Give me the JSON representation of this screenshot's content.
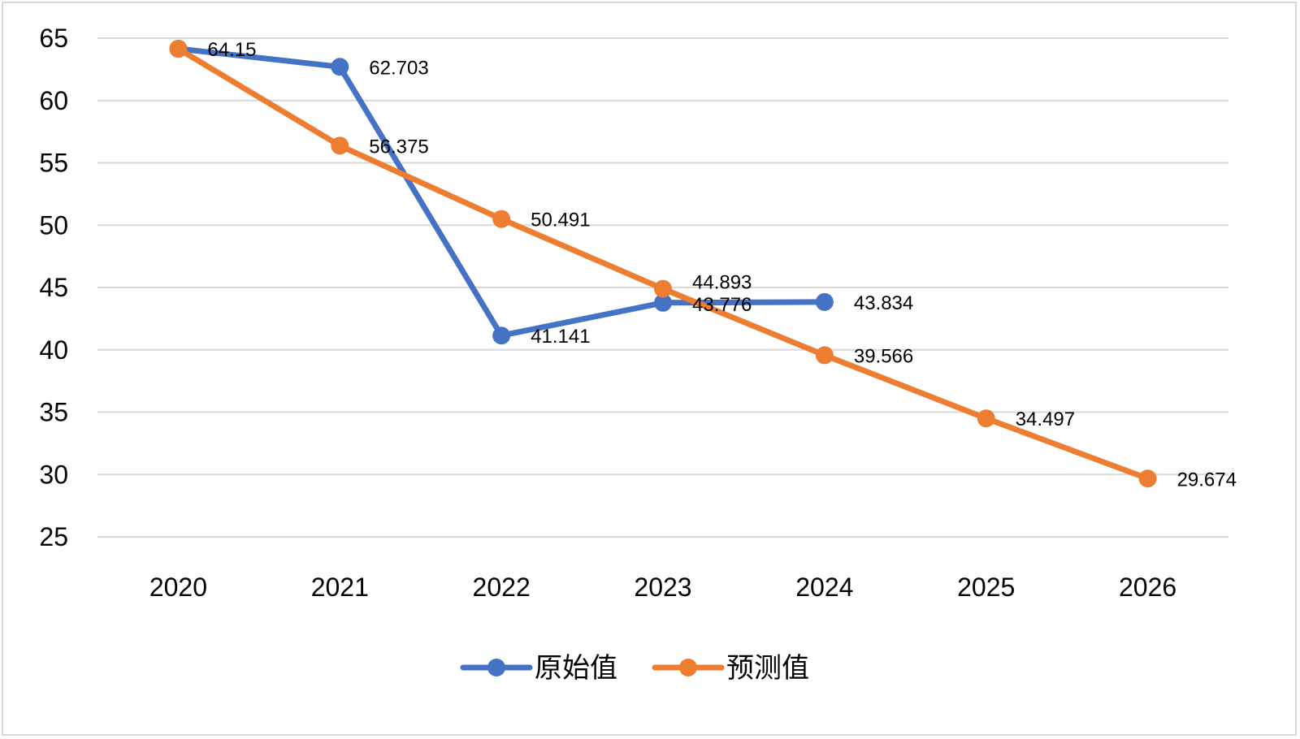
{
  "chart_data": {
    "type": "line",
    "categories": [
      "2020",
      "2021",
      "2022",
      "2023",
      "2024",
      "2025",
      "2026"
    ],
    "series": [
      {
        "name": "原始值",
        "color": "#4472C4",
        "values": [
          64.15,
          62.703,
          41.141,
          43.776,
          43.834,
          null,
          null
        ],
        "labels": [
          "64.15",
          "62.703",
          "41.141",
          "43.776",
          "43.834",
          null,
          null
        ]
      },
      {
        "name": "预测值",
        "color": "#ED7D31",
        "values": [
          64.15,
          56.375,
          50.491,
          44.893,
          39.566,
          34.497,
          29.674
        ],
        "labels": [
          null,
          "56.375",
          "50.491",
          "44.893",
          "39.566",
          "34.497",
          "29.674"
        ]
      }
    ],
    "y_ticks": [
      "25",
      "30",
      "35",
      "40",
      "45",
      "50",
      "55",
      "60",
      "65"
    ],
    "ylim": [
      25,
      65
    ],
    "grid": true,
    "legend_position": "bottom"
  }
}
